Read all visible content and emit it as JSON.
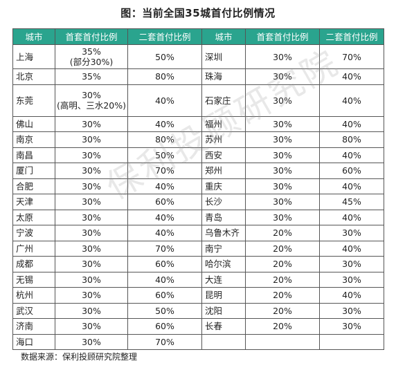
{
  "title": "图：当前全国35城首付比例情况",
  "headers": [
    "城市",
    "首套首付比例",
    "二套首付比例",
    "城市",
    "首套首付比例",
    "二套首付比例"
  ],
  "left": [
    {
      "city": "上海",
      "first": "35%",
      "first_note": "(部分30%)",
      "second": "50%"
    },
    {
      "city": "北京",
      "first": "35%",
      "first_note": "",
      "second": "80%"
    },
    {
      "city": "东莞",
      "first": "30%",
      "first_note": "(高明、三水20%)",
      "second": "40%"
    },
    {
      "city": "佛山",
      "first": "30%",
      "first_note": "",
      "second": "40%"
    },
    {
      "city": "南京",
      "first": "30%",
      "first_note": "",
      "second": "80%"
    },
    {
      "city": "南昌",
      "first": "30%",
      "first_note": "",
      "second": "50%"
    },
    {
      "city": "厦门",
      "first": "30%",
      "first_note": "",
      "second": "70%"
    },
    {
      "city": "合肥",
      "first": "30%",
      "first_note": "",
      "second": "40%"
    },
    {
      "city": "天津",
      "first": "30%",
      "first_note": "",
      "second": "60%"
    },
    {
      "city": "太原",
      "first": "30%",
      "first_note": "",
      "second": "40%"
    },
    {
      "city": "宁波",
      "first": "30%",
      "first_note": "",
      "second": "40%"
    },
    {
      "city": "广州",
      "first": "30%",
      "first_note": "",
      "second": "70%"
    },
    {
      "city": "成都",
      "first": "30%",
      "first_note": "",
      "second": "60%"
    },
    {
      "city": "无锡",
      "first": "30%",
      "first_note": "",
      "second": "40%"
    },
    {
      "city": "杭州",
      "first": "30%",
      "first_note": "",
      "second": "60%"
    },
    {
      "city": "武汉",
      "first": "30%",
      "first_note": "",
      "second": "50%"
    },
    {
      "city": "济南",
      "first": "30%",
      "first_note": "",
      "second": "60%"
    },
    {
      "city": "海口",
      "first": "30%",
      "first_note": "",
      "second": "70%"
    }
  ],
  "right": [
    {
      "city": "深圳",
      "first": "30%",
      "second": "70%"
    },
    {
      "city": "珠海",
      "first": "30%",
      "second": "40%"
    },
    {
      "city": "石家庄",
      "first": "30%",
      "second": "40%"
    },
    {
      "city": "福州",
      "first": "30%",
      "second": "40%"
    },
    {
      "city": "苏州",
      "first": "30%",
      "second": "80%"
    },
    {
      "city": "西安",
      "first": "30%",
      "second": "40%"
    },
    {
      "city": "郑州",
      "first": "30%",
      "second": "60%"
    },
    {
      "city": "重庆",
      "first": "30%",
      "second": "40%"
    },
    {
      "city": "长沙",
      "first": "30%",
      "second": "45%"
    },
    {
      "city": "青岛",
      "first": "30%",
      "second": "40%"
    },
    {
      "city": "乌鲁木齐",
      "first": "20%",
      "second": "30%"
    },
    {
      "city": "南宁",
      "first": "20%",
      "second": "40%"
    },
    {
      "city": "哈尔滨",
      "first": "20%",
      "second": "30%"
    },
    {
      "city": "大连",
      "first": "20%",
      "second": "30%"
    },
    {
      "city": "昆明",
      "first": "20%",
      "second": "40%"
    },
    {
      "city": "沈阳",
      "first": "20%",
      "second": "30%"
    },
    {
      "city": "长春",
      "first": "20%",
      "second": "30%"
    },
    {
      "city": "",
      "first": "",
      "second": ""
    }
  ],
  "source": "数据来源：保利投顾研究院整理",
  "watermark": "保利投顾研究院",
  "colors": {
    "header_bg": "#2aa48e",
    "header_text": "#ffffff"
  }
}
